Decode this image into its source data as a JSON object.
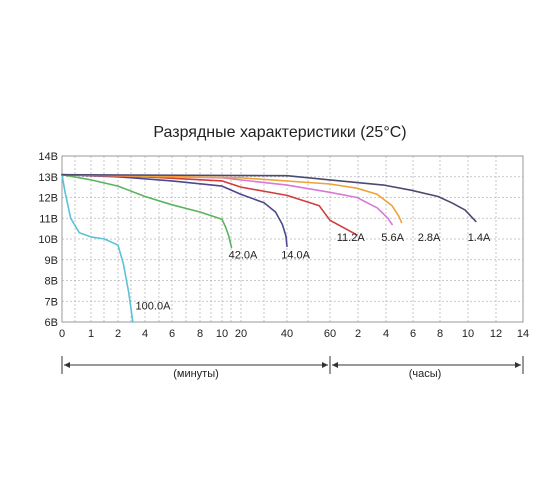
{
  "chart_data": {
    "type": "line",
    "title": "Разрядные характеристики (25°C)",
    "y_ticks": [
      "14В",
      "13В",
      "12В",
      "11В",
      "10В",
      "9В",
      "8В",
      "7В",
      "6В"
    ],
    "y_values": [
      14,
      13,
      12,
      11,
      10,
      9,
      8,
      7,
      6
    ],
    "ylim": [
      6,
      14
    ],
    "x_ticks_minutes": [
      "0",
      "1",
      "2",
      "4",
      "6",
      "8",
      "10",
      "20",
      "40",
      "60"
    ],
    "x_ticks_hours": [
      "2",
      "4",
      "6",
      "8",
      "10",
      "12",
      "14"
    ],
    "x_section_minutes": "(минуты)",
    "x_section_hours": "(часы)",
    "grid": true,
    "series": [
      {
        "name": "100.0A",
        "color": "#5bc2d8",
        "points": [
          [
            0,
            13.1
          ],
          [
            0.1,
            12.3
          ],
          [
            0.3,
            11.0
          ],
          [
            0.6,
            10.3
          ],
          [
            1,
            10.1
          ],
          [
            1.5,
            10.0
          ],
          [
            2,
            9.7
          ],
          [
            2.4,
            8.8
          ],
          [
            2.8,
            7.4
          ],
          [
            3.1,
            6.0
          ]
        ]
      },
      {
        "name": "42.0A",
        "color": "#5bb35e",
        "points": [
          [
            0,
            13.1
          ],
          [
            1,
            12.85
          ],
          [
            2,
            12.55
          ],
          [
            4,
            12.05
          ],
          [
            6,
            11.65
          ],
          [
            8,
            11.3
          ],
          [
            10,
            10.95
          ],
          [
            12,
            10.55
          ],
          [
            13.5,
            10.15
          ],
          [
            15,
            9.6
          ]
        ]
      },
      {
        "name": "14.0A",
        "color": "#4a4a8f",
        "points": [
          [
            0,
            13.1
          ],
          [
            2,
            13.0
          ],
          [
            6,
            12.8
          ],
          [
            10,
            12.55
          ],
          [
            20,
            12.15
          ],
          [
            30,
            11.75
          ],
          [
            35,
            11.3
          ],
          [
            38,
            10.7
          ],
          [
            39.5,
            10.15
          ],
          [
            40,
            9.65
          ]
        ]
      },
      {
        "name": "11.2A",
        "color": "#d23c3c",
        "points": [
          [
            0,
            13.1
          ],
          [
            4,
            13.0
          ],
          [
            10,
            12.8
          ],
          [
            20,
            12.5
          ],
          [
            40,
            12.1
          ],
          [
            55,
            11.6
          ],
          [
            60,
            10.9
          ],
          [
            62,
            10.2
          ]
        ]
      },
      {
        "name": "5.6A",
        "color": "#d77ad6",
        "points": [
          [
            0,
            13.1
          ],
          [
            10,
            12.95
          ],
          [
            40,
            12.6
          ],
          [
            60,
            12.25
          ],
          [
            62,
            12.0
          ],
          [
            63.5,
            11.5
          ],
          [
            64.3,
            11.0
          ],
          [
            64.6,
            10.7
          ]
        ]
      },
      {
        "name": "2.8A",
        "color": "#f0a23a",
        "points": [
          [
            0,
            13.1
          ],
          [
            20,
            12.95
          ],
          [
            60,
            12.65
          ],
          [
            62,
            12.45
          ],
          [
            63.5,
            12.15
          ],
          [
            64.6,
            11.6
          ],
          [
            65.1,
            11.1
          ],
          [
            65.3,
            10.8
          ]
        ]
      },
      {
        "name": "1.4A",
        "color": "#4b4b72",
        "points": [
          [
            0,
            13.1
          ],
          [
            40,
            13.05
          ],
          [
            60,
            12.85
          ],
          [
            64,
            12.6
          ],
          [
            66,
            12.35
          ],
          [
            68,
            12.05
          ],
          [
            69,
            11.75
          ],
          [
            70,
            11.4
          ],
          [
            70.8,
            10.85
          ]
        ]
      }
    ],
    "annotations": [
      {
        "text": "100.0A",
        "x": 3.3,
        "y": 6.6
      },
      {
        "text": "42.0A",
        "x": 13.5,
        "y": 9.05
      },
      {
        "text": "14.0A",
        "x": 37.5,
        "y": 9.05
      },
      {
        "text": "11.2A",
        "x": 60.5,
        "y": 9.9
      },
      {
        "text": "5.6A",
        "x": 63.8,
        "y": 9.9
      },
      {
        "text": "2.8A",
        "x": 66.5,
        "y": 9.9
      },
      {
        "text": "1.4A",
        "x": 70.2,
        "y": 9.9
      }
    ]
  }
}
